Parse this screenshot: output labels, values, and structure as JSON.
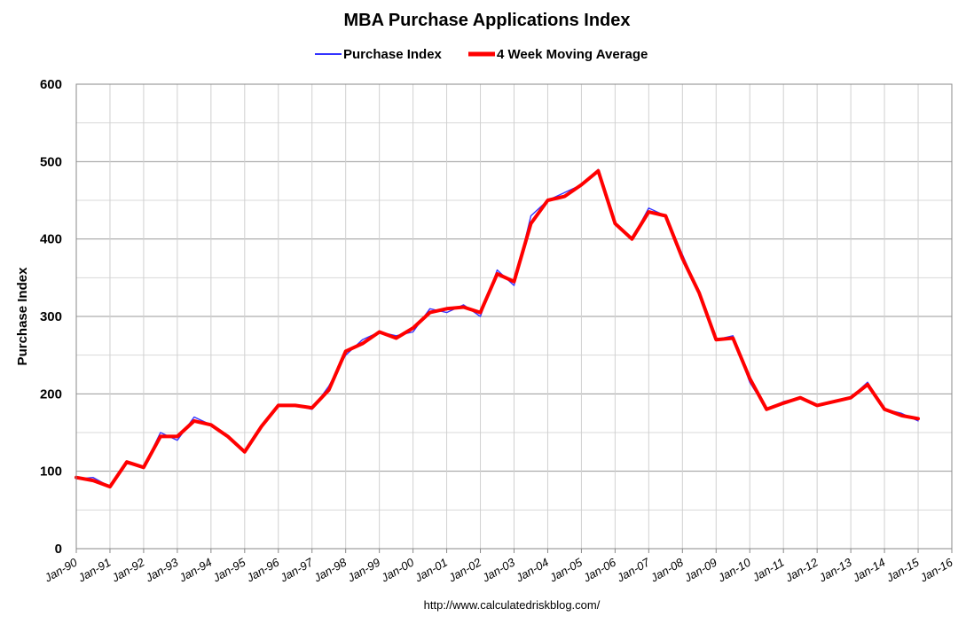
{
  "chart_data": {
    "type": "line",
    "title": "MBA Purchase Applications Index",
    "ylabel": "Purchase Index",
    "xlabel": "",
    "source_note": "http://www.calculatedriskblog.com/",
    "ylim": [
      0,
      600
    ],
    "yticks": [
      "0",
      "100",
      "200",
      "300",
      "400",
      "500",
      "600"
    ],
    "ytick_values": [
      0,
      100,
      200,
      300,
      400,
      500,
      600
    ],
    "xlim": [
      1990,
      2016
    ],
    "xticks": [
      "Jan-90",
      "Jan-91",
      "Jan-92",
      "Jan-93",
      "Jan-94",
      "Jan-95",
      "Jan-96",
      "Jan-97",
      "Jan-98",
      "Jan-99",
      "Jan-00",
      "Jan-01",
      "Jan-02",
      "Jan-03",
      "Jan-04",
      "Jan-05",
      "Jan-06",
      "Jan-07",
      "Jan-08",
      "Jan-09",
      "Jan-10",
      "Jan-11",
      "Jan-12",
      "Jan-13",
      "Jan-14",
      "Jan-15",
      "Jan-16"
    ],
    "grid": true,
    "legend_position": "top",
    "series": [
      {
        "name": "Purchase Index",
        "color": "#3333ff",
        "x": [
          1990.0,
          1990.5,
          1991.0,
          1991.5,
          1992.0,
          1992.5,
          1993.0,
          1993.5,
          1994.0,
          1994.5,
          1995.0,
          1995.5,
          1996.0,
          1996.5,
          1997.0,
          1997.5,
          1998.0,
          1998.5,
          1999.0,
          1999.5,
          2000.0,
          2000.5,
          2001.0,
          2001.5,
          2002.0,
          2002.5,
          2003.0,
          2003.5,
          2004.0,
          2004.5,
          2005.0,
          2005.5,
          2006.0,
          2006.5,
          2007.0,
          2007.5,
          2008.0,
          2008.5,
          2009.0,
          2009.5,
          2010.0,
          2010.5,
          2011.0,
          2011.5,
          2012.0,
          2012.5,
          2013.0,
          2013.5,
          2014.0,
          2014.5,
          2015.0
        ],
        "y": [
          90,
          92,
          80,
          110,
          105,
          150,
          140,
          170,
          160,
          145,
          125,
          160,
          185,
          185,
          180,
          210,
          250,
          270,
          280,
          275,
          280,
          310,
          305,
          315,
          300,
          360,
          340,
          430,
          450,
          460,
          470,
          490,
          420,
          400,
          440,
          430,
          380,
          330,
          270,
          275,
          215,
          180,
          190,
          195,
          185,
          190,
          195,
          215,
          180,
          175,
          165
        ]
      },
      {
        "name": "4 Week Moving Average",
        "color": "#ff0000",
        "x": [
          1990.0,
          1990.5,
          1991.0,
          1991.5,
          1992.0,
          1992.5,
          1993.0,
          1993.5,
          1994.0,
          1994.5,
          1995.0,
          1995.5,
          1996.0,
          1996.5,
          1997.0,
          1997.5,
          1998.0,
          1998.5,
          1999.0,
          1999.5,
          2000.0,
          2000.5,
          2001.0,
          2001.5,
          2002.0,
          2002.5,
          2003.0,
          2003.5,
          2004.0,
          2004.5,
          2005.0,
          2005.5,
          2006.0,
          2006.5,
          2007.0,
          2007.5,
          2008.0,
          2008.5,
          2009.0,
          2009.5,
          2010.0,
          2010.5,
          2011.0,
          2011.5,
          2012.0,
          2012.5,
          2013.0,
          2013.5,
          2014.0,
          2014.5,
          2015.0
        ],
        "y": [
          92,
          88,
          80,
          112,
          105,
          145,
          145,
          165,
          160,
          145,
          125,
          158,
          185,
          185,
          182,
          205,
          255,
          265,
          280,
          272,
          285,
          305,
          310,
          312,
          305,
          355,
          345,
          420,
          450,
          455,
          470,
          488,
          420,
          400,
          435,
          430,
          375,
          330,
          270,
          272,
          220,
          180,
          188,
          195,
          185,
          190,
          195,
          212,
          180,
          172,
          168
        ]
      }
    ]
  }
}
